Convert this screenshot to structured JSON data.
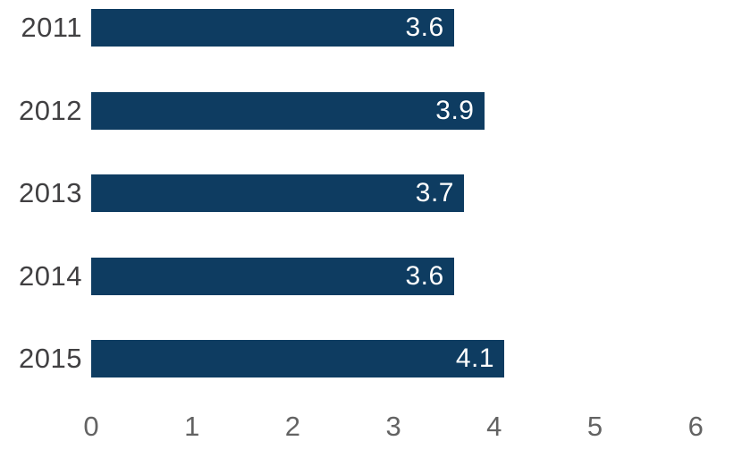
{
  "chart_data": {
    "type": "bar",
    "orientation": "horizontal",
    "title": "",
    "xlabel": "",
    "ylabel": "",
    "categories": [
      "2011",
      "2012",
      "2013",
      "2014",
      "2015"
    ],
    "values": [
      3.6,
      3.9,
      3.7,
      3.6,
      4.1
    ],
    "value_labels": [
      "3.6",
      "3.9",
      "3.7",
      "3.6",
      "4.1"
    ],
    "xlim": [
      0,
      6
    ],
    "x_ticks": [
      "0",
      "1",
      "2",
      "3",
      "4",
      "5",
      "6"
    ],
    "grid": false,
    "legend": false,
    "colors": {
      "bar": "#0e3c61",
      "value_label": "#ffffff",
      "category_label": "#414042",
      "tick_label": "#636363",
      "background": "#ffffff"
    }
  }
}
